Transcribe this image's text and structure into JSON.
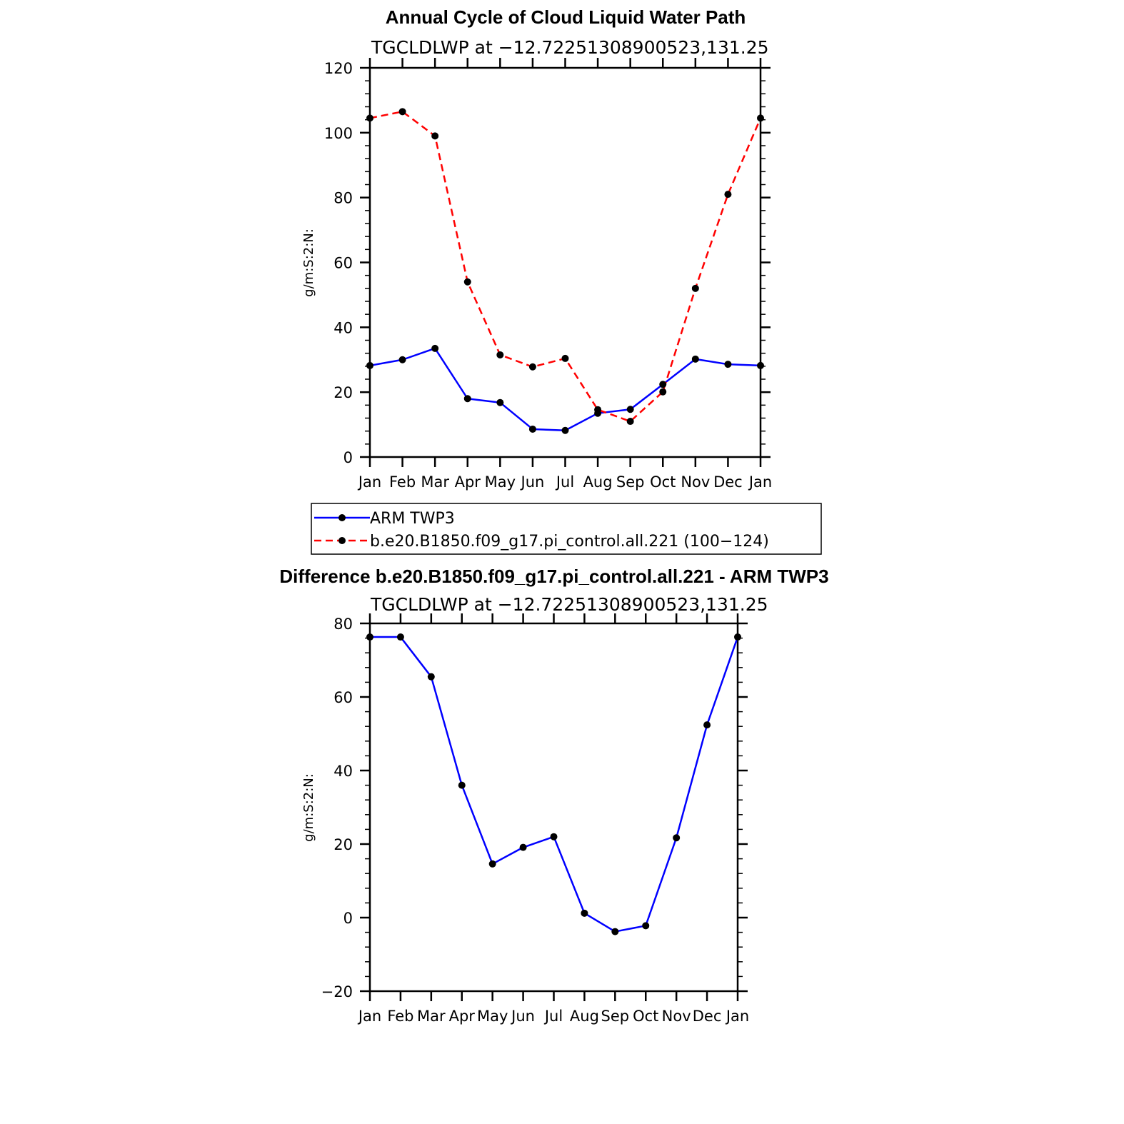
{
  "chart_data": [
    {
      "type": "line",
      "title": "Annual Cycle of Cloud Liquid Water Path",
      "subtitle": "TGCLDLWP at −12.72251308900523,131.25",
      "ylabel": "g/m:S:2:N:",
      "xlabel": "",
      "categories": [
        "Jan",
        "Feb",
        "Mar",
        "Apr",
        "May",
        "Jun",
        "Jul",
        "Aug",
        "Sep",
        "Oct",
        "Nov",
        "Dec",
        "Jan"
      ],
      "ylim": [
        0,
        120
      ],
      "yticks": [
        0,
        20,
        40,
        60,
        80,
        100,
        120
      ],
      "ytick_labels": [
        "0",
        "20",
        "40",
        "60",
        "80",
        "100",
        "120"
      ],
      "grid": false,
      "legend_position": "bottom",
      "series": [
        {
          "name": "ARM TWP3",
          "color": "#0000ff",
          "dash": "solid",
          "values": [
            28.2,
            30.0,
            33.5,
            18.0,
            16.8,
            8.6,
            8.2,
            13.5,
            14.7,
            22.4,
            30.2,
            28.6,
            28.2
          ]
        },
        {
          "name": "b.e20.B1850.f09_g17.pi_control.all.221 (100−124)",
          "color": "#ff0000",
          "dash": "dashed",
          "values": [
            104.5,
            106.5,
            99.0,
            54.0,
            31.5,
            27.8,
            30.4,
            14.6,
            11.0,
            20.1,
            52.0,
            81.0,
            104.5
          ]
        }
      ]
    },
    {
      "type": "line",
      "title": "Difference b.e20.B1850.f09_g17.pi_control.all.221 - ARM TWP3",
      "subtitle": "TGCLDLWP at −12.72251308900523,131.25",
      "ylabel": "g/m:S:2:N:",
      "xlabel": "",
      "categories": [
        "Jan",
        "Feb",
        "Mar",
        "Apr",
        "May",
        "Jun",
        "Jul",
        "Aug",
        "Sep",
        "Oct",
        "Nov",
        "Dec",
        "Jan"
      ],
      "ylim": [
        -20,
        80
      ],
      "yticks": [
        -20,
        0,
        20,
        40,
        60,
        80
      ],
      "ytick_labels": [
        "−20",
        "0",
        "20",
        "40",
        "60",
        "80"
      ],
      "grid": false,
      "series": [
        {
          "color": "#0000ff",
          "dash": "solid",
          "values": [
            76.3,
            76.3,
            65.5,
            36.0,
            14.6,
            19.1,
            22.0,
            1.2,
            -3.8,
            -2.2,
            21.7,
            52.4,
            76.3
          ]
        }
      ]
    }
  ]
}
